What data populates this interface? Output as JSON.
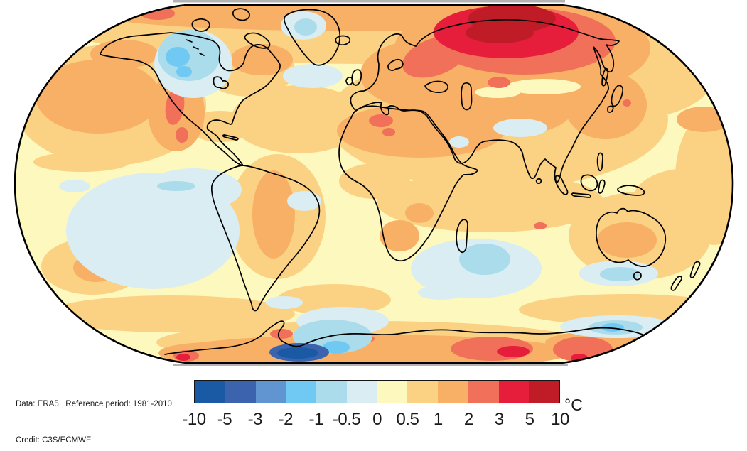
{
  "figure": {
    "credits_line1": "Data: ERA5.  Reference period: 1981-2010.",
    "credits_line2": "Credit: C3S/ECMWF",
    "unit_label": "°C"
  },
  "colorbar": {
    "tick_labels": [
      "-10",
      "-5",
      "-3",
      "-2",
      "-1",
      "-0.5",
      "0",
      "0.5",
      "1",
      "2",
      "3",
      "5",
      "10"
    ],
    "segment_colors": [
      "#1A5AA4",
      "#3B63AE",
      "#6095D1",
      "#6FC9F2",
      "#AADCEC",
      "#DAEDF2",
      "#FDF8BD",
      "#FBD283",
      "#F8B066",
      "#F1705A",
      "#E61E3C",
      "#C01C28"
    ]
  },
  "chart_data": {
    "type": "heatmap",
    "subtype": "world-temperature-anomaly-map",
    "projection": "robinson",
    "unit": "°C",
    "levels": [
      -10,
      -5,
      -3,
      -2,
      -1,
      -0.5,
      0,
      0.5,
      1,
      2,
      3,
      5,
      10
    ],
    "palette": [
      "#1A5AA4",
      "#3B63AE",
      "#6095D1",
      "#6FC9F2",
      "#AADCEC",
      "#DAEDF2",
      "#FDF8BD",
      "#FBD283",
      "#F8B066",
      "#F1705A",
      "#E61E3C",
      "#C01C28"
    ],
    "legend_position": "bottom",
    "source_note": "Data: ERA5.  Reference period: 1981-2010.",
    "credit": "Credit: C3S/ECMWF",
    "notable_anomalies": [
      {
        "region": "North-central Siberia",
        "anomaly_c": "+5 to +10"
      },
      {
        "region": "Northwest Russia / Barents region",
        "anomaly_c": "+3 to +5"
      },
      {
        "region": "Arctic Ocean rim",
        "anomaly_c": "+1 to +2"
      },
      {
        "region": "Europe",
        "anomaly_c": "+1 to +2"
      },
      {
        "region": "Alaska and Bering Strait",
        "anomaly_c": "+1 to +3"
      },
      {
        "region": "Central Canada west of Hudson Bay",
        "anomaly_c": "-1 to -2"
      },
      {
        "region": "Baffin Bay / west Greenland",
        "anomaly_c": "-0.5 to -1"
      },
      {
        "region": "North Atlantic south of Greenland",
        "anomaly_c": "-0.5 to 0"
      },
      {
        "region": "Northeast Pacific",
        "anomaly_c": "+1 to +2"
      },
      {
        "region": "Western United States / Mexico",
        "anomaly_c": "+2 to +3"
      },
      {
        "region": "Northwest Africa",
        "anomaly_c": "+1 to +3"
      },
      {
        "region": "Tibetan Plateau",
        "anomaly_c": "-0.5 to -1"
      },
      {
        "region": "Tropical oceans",
        "anomaly_c": "0 to +1"
      },
      {
        "region": "Southeast Pacific",
        "anomaly_c": "-0.5 to 0"
      },
      {
        "region": "Southern Indian Ocean",
        "anomaly_c": "-0.5 to -1"
      },
      {
        "region": "Central Australia",
        "anomaly_c": "+1 to +2"
      },
      {
        "region": "South of Australia / Tasman Sea",
        "anomaly_c": "-0.5 to -1"
      },
      {
        "region": "East Antarctica coast",
        "anomaly_c": "+2 to +5"
      },
      {
        "region": "Antarctic Peninsula / Weddell Sea",
        "anomaly_c": "-5 to -10"
      }
    ]
  }
}
